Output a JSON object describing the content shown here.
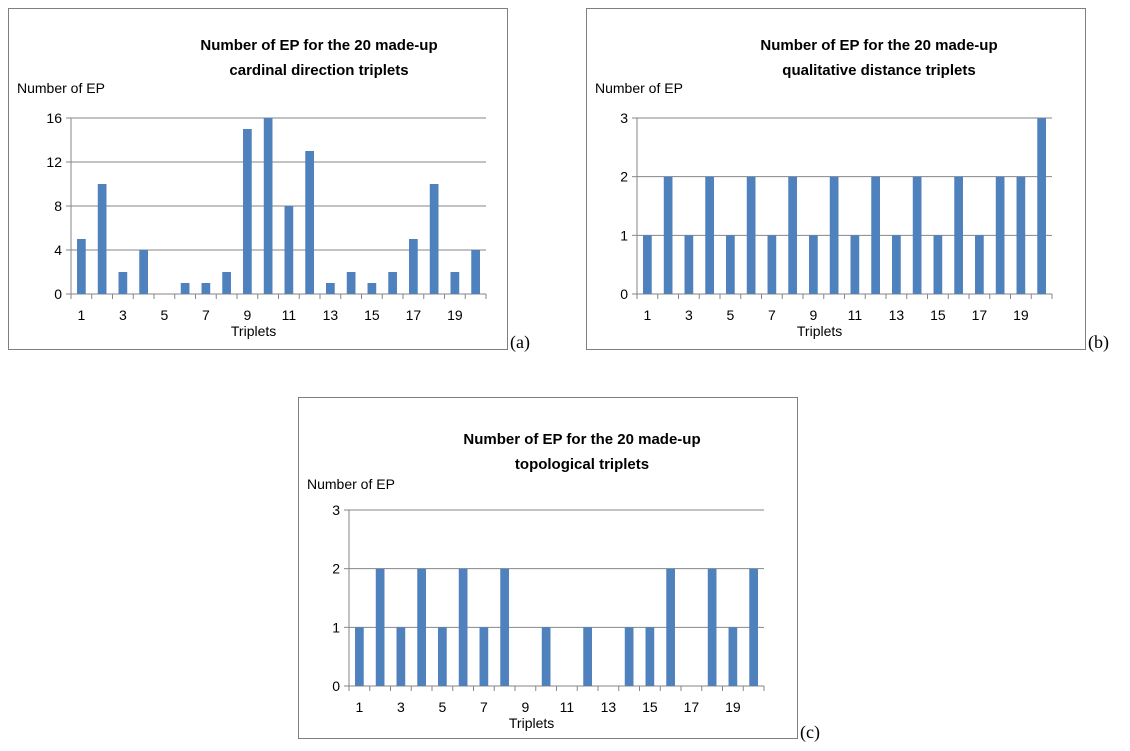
{
  "chart_data": [
    {
      "type": "bar",
      "id": "a",
      "title_lines": [
        "Number of EP for the 20 made-up",
        "cardinal direction triplets"
      ],
      "ylabel": "Number of EP",
      "xlabel": "Triplets",
      "ylim": [
        0,
        16
      ],
      "yticks": [
        0,
        4,
        8,
        12,
        16
      ],
      "categories": [
        1,
        2,
        3,
        4,
        5,
        6,
        7,
        8,
        9,
        10,
        11,
        12,
        13,
        14,
        15,
        16,
        17,
        18,
        19,
        20
      ],
      "xtick_labels": [
        "1",
        "3",
        "5",
        "7",
        "9",
        "11",
        "13",
        "15",
        "17",
        "19"
      ],
      "values": [
        5,
        10,
        2,
        4,
        0,
        1,
        1,
        2,
        15,
        16,
        8,
        13,
        1,
        2,
        1,
        2,
        5,
        10,
        2,
        4
      ],
      "color": "#4f81bd",
      "grid": true,
      "panel_label": "(a)"
    },
    {
      "type": "bar",
      "id": "b",
      "title_lines": [
        "Number of EP for the 20 made-up",
        "qualitative distance triplets"
      ],
      "ylabel": "Number of EP",
      "xlabel": "Triplets",
      "ylim": [
        0,
        3
      ],
      "yticks": [
        0,
        1,
        2,
        3
      ],
      "categories": [
        1,
        2,
        3,
        4,
        5,
        6,
        7,
        8,
        9,
        10,
        11,
        12,
        13,
        14,
        15,
        16,
        17,
        18,
        19,
        20
      ],
      "xtick_labels": [
        "1",
        "3",
        "5",
        "7",
        "9",
        "11",
        "13",
        "15",
        "17",
        "19"
      ],
      "values": [
        1,
        2,
        1,
        2,
        1,
        2,
        1,
        2,
        1,
        2,
        1,
        2,
        1,
        2,
        1,
        2,
        1,
        2,
        2,
        3
      ],
      "color": "#4f81bd",
      "grid": true,
      "panel_label": "(b)"
    },
    {
      "type": "bar",
      "id": "c",
      "title_lines": [
        "Number of EP for the 20 made-up",
        "topological triplets"
      ],
      "ylabel": "Number of EP",
      "xlabel": "Triplets",
      "ylim": [
        0,
        3
      ],
      "yticks": [
        0,
        1,
        2,
        3
      ],
      "categories": [
        1,
        2,
        3,
        4,
        5,
        6,
        7,
        8,
        9,
        10,
        11,
        12,
        13,
        14,
        15,
        16,
        17,
        18,
        19,
        20
      ],
      "xtick_labels": [
        "1",
        "3",
        "5",
        "7",
        "9",
        "11",
        "13",
        "15",
        "17",
        "19"
      ],
      "values": [
        1,
        2,
        1,
        2,
        1,
        2,
        1,
        2,
        0,
        1,
        0,
        1,
        0,
        1,
        1,
        2,
        0,
        2,
        1,
        2
      ],
      "color": "#4f81bd",
      "grid": true,
      "panel_label": "(c)"
    }
  ]
}
